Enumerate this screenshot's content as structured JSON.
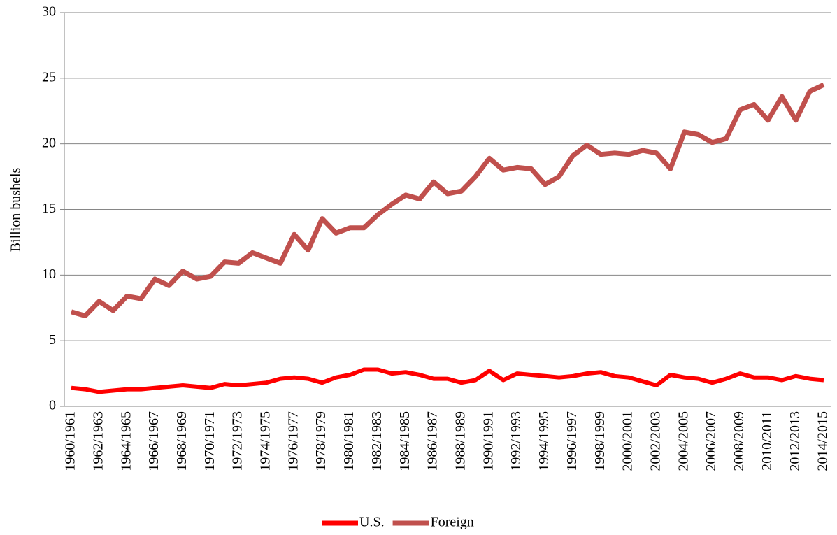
{
  "chart_data": {
    "type": "line",
    "y_label": "Billion bushels",
    "categories": [
      "1960/1961",
      null,
      "1962/1963",
      null,
      "1964/1965",
      null,
      "1966/1967",
      null,
      "1968/1969",
      null,
      "1970/1971",
      null,
      "1972/1973",
      null,
      "1974/1975",
      null,
      "1976/1977",
      null,
      "1978/1979",
      null,
      "1980/1981",
      null,
      "1982/1983",
      null,
      "1984/1985",
      null,
      "1986/1987",
      null,
      "1988/1989",
      null,
      "1990/1991",
      null,
      "1992/1993",
      null,
      "1994/1995",
      null,
      "1996/1997",
      null,
      "1998/1999",
      null,
      "2000/2001",
      null,
      "2002/2003",
      null,
      "2004/2005",
      null,
      "2006/2007",
      null,
      "2008/2009",
      null,
      "2010/2011",
      null,
      "2012/2013",
      null,
      "2014/2015"
    ],
    "series": [
      {
        "name": "U.S.",
        "color": "#ff0000",
        "values": [
          1.4,
          1.3,
          1.1,
          1.2,
          1.3,
          1.3,
          1.4,
          1.5,
          1.6,
          1.5,
          1.4,
          1.7,
          1.6,
          1.7,
          1.8,
          2.1,
          2.2,
          2.1,
          1.8,
          2.2,
          2.4,
          2.8,
          2.8,
          2.5,
          2.6,
          2.4,
          2.1,
          2.1,
          1.8,
          2.0,
          2.7,
          2.0,
          2.5,
          2.4,
          2.3,
          2.2,
          2.3,
          2.5,
          2.6,
          2.3,
          2.2,
          1.9,
          1.6,
          2.4,
          2.2,
          2.1,
          1.8,
          2.1,
          2.5,
          2.2,
          2.2,
          2.0,
          2.3,
          2.1,
          2.0
        ]
      },
      {
        "name": "Foreign",
        "color": "#c0504d",
        "values": [
          7.2,
          6.9,
          8.0,
          7.3,
          8.4,
          8.2,
          9.7,
          9.2,
          10.3,
          9.7,
          9.9,
          11.0,
          10.9,
          11.7,
          11.3,
          10.9,
          13.1,
          11.9,
          14.3,
          13.2,
          13.6,
          13.6,
          14.6,
          15.4,
          16.1,
          15.8,
          17.1,
          16.2,
          16.4,
          17.5,
          18.9,
          18.0,
          18.2,
          18.1,
          16.9,
          17.5,
          19.1,
          19.9,
          19.2,
          19.3,
          19.2,
          19.5,
          19.3,
          18.1,
          20.9,
          20.7,
          20.1,
          20.4,
          22.6,
          23.0,
          21.8,
          23.6,
          21.8,
          24.0,
          24.5
        ]
      }
    ],
    "ylim": [
      0,
      30
    ],
    "yticks": [
      0,
      5,
      10,
      15,
      20,
      25,
      30
    ],
    "grid": true,
    "legend": "bottom"
  }
}
